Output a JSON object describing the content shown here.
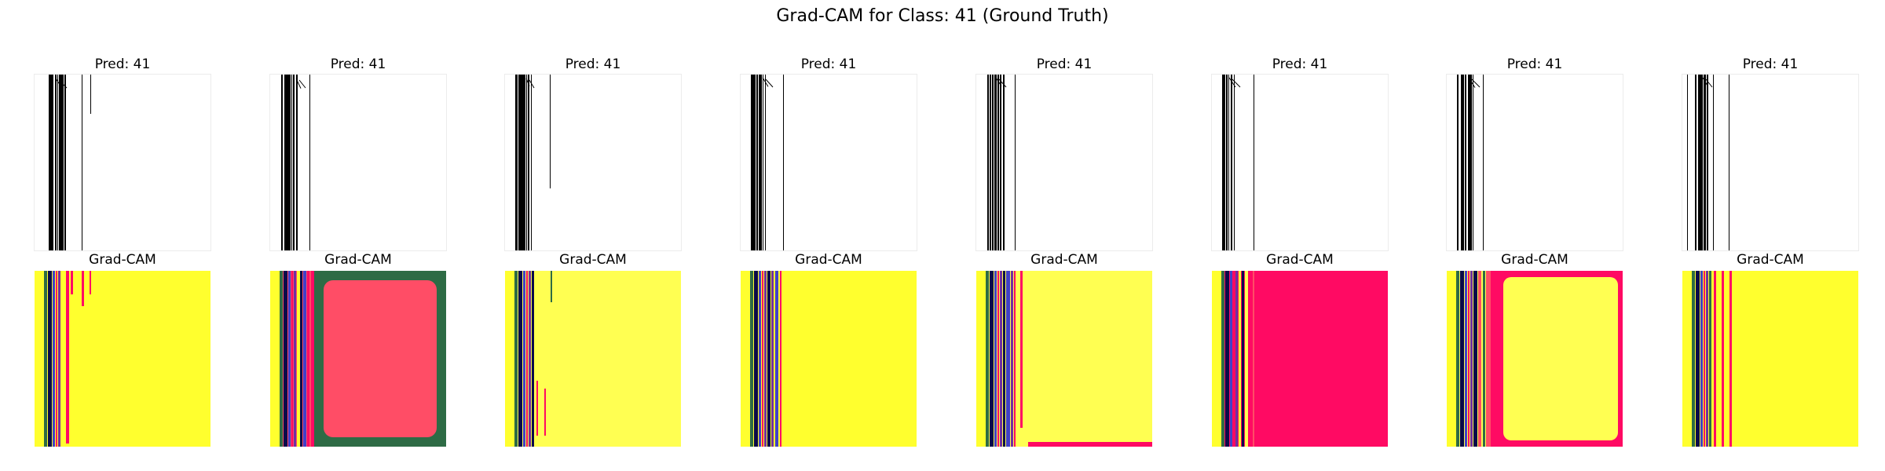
{
  "figure": {
    "title": "Grad-CAM for Class: 41 (Ground Truth)"
  },
  "colors": {
    "background": "#ffffff",
    "ink": "#000000",
    "yellow": "#ffff2e",
    "pale_yellow": "#ffff52",
    "hot_pink": "#ff0a63",
    "salmon": "#ff4d66",
    "dark_green": "#2e6b45",
    "navy": "#0a0a4a",
    "blue": "#4040c8",
    "purple": "#7030a0"
  },
  "chart_data": {
    "type": "image-grid",
    "rows": [
      {
        "kind": "input",
        "titles": [
          "Pred: 41",
          "Pred: 41",
          "Pred: 41",
          "Pred: 41",
          "Pred: 41",
          "Pred: 41",
          "Pred: 41",
          "Pred: 41"
        ]
      },
      {
        "kind": "grad-cam",
        "titles": [
          "Grad-CAM",
          "Grad-CAM",
          "Grad-CAM",
          "Grad-CAM",
          "Grad-CAM",
          "Grad-CAM",
          "Grad-CAM",
          "Grad-CAM"
        ]
      }
    ],
    "columns": 8,
    "axes_visible": false,
    "grid": false,
    "legend": "none",
    "heatmap_dominant_region": [
      "yellow",
      "salmon",
      "pale_yellow",
      "yellow",
      "pale_yellow",
      "hot_pink",
      "pale_yellow",
      "yellow"
    ]
  }
}
